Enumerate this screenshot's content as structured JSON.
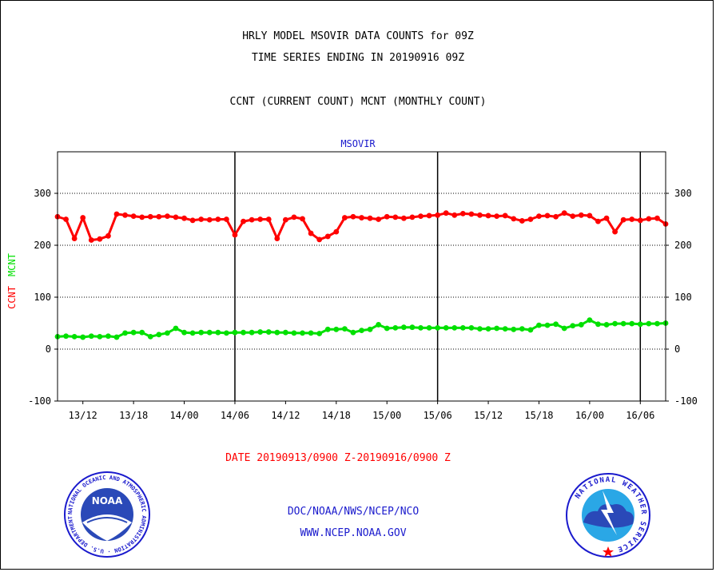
{
  "titles": {
    "line1": "HRLY MODEL MSOVIR DATA COUNTS for 09Z",
    "line2": "TIME SERIES ENDING IN 20190916 09Z",
    "line3": "CCNT (CURRENT COUNT) MCNT (MONTHLY COUNT)"
  },
  "footer": {
    "date_range": "DATE 20190913/0900 Z-20190916/0900 Z",
    "agency": "DOC/NOAA/NWS/NCEP/NCO",
    "url": "WWW.NCEP.NOAA.GOV"
  },
  "logos": {
    "noaa_text": "NOAA",
    "noaa_ring": "NATIONAL OCEANIC AND ATMOSPHERIC ADMINISTRATION · U.S. DEPARTMENT OF COMMERCE ·",
    "nws_ring": "NATIONAL WEATHER SERVICE"
  },
  "colors": {
    "ccnt": "#ff0000",
    "mcnt": "#00e000",
    "label_blue": "#1a1acd"
  },
  "chart_data": {
    "type": "line",
    "title": "MSOVIR",
    "ylabel_series": [
      {
        "text": "CCNT",
        "color": "#ff0000"
      },
      {
        "text": "MCNT",
        "color": "#00e000"
      }
    ],
    "ylim": [
      -100,
      380
    ],
    "yticks": [
      -100,
      0,
      100,
      200,
      300
    ],
    "grid_lines_y": [
      0,
      100,
      200,
      300
    ],
    "xlim": [
      0,
      72
    ],
    "x_tick_labels": [
      {
        "label": "13/12",
        "hour": 3
      },
      {
        "label": "13/18",
        "hour": 9
      },
      {
        "label": "14/00",
        "hour": 15
      },
      {
        "label": "14/06",
        "hour": 21
      },
      {
        "label": "14/12",
        "hour": 27
      },
      {
        "label": "14/18",
        "hour": 33
      },
      {
        "label": "15/00",
        "hour": 39
      },
      {
        "label": "15/06",
        "hour": 45
      },
      {
        "label": "15/12",
        "hour": 51
      },
      {
        "label": "15/18",
        "hour": 57
      },
      {
        "label": "16/00",
        "hour": 63
      },
      {
        "label": "16/06",
        "hour": 69
      }
    ],
    "vertical_markers_hours": [
      21,
      45,
      69
    ],
    "series": [
      {
        "name": "CCNT",
        "color": "#ff0000",
        "values": [
          255,
          250,
          213,
          253,
          210,
          212,
          218,
          260,
          258,
          256,
          254,
          255,
          255,
          256,
          254,
          252,
          248,
          250,
          249,
          250,
          250,
          220,
          246,
          249,
          250,
          250,
          213,
          249,
          254,
          251,
          223,
          211,
          217,
          226,
          253,
          255,
          253,
          252,
          250,
          255,
          254,
          252,
          254,
          256,
          257,
          258,
          262,
          258,
          261,
          260,
          258,
          257,
          256,
          257,
          251,
          247,
          250,
          256,
          257,
          255,
          262,
          256,
          258,
          257,
          246,
          252,
          226,
          249,
          250,
          248,
          251,
          252,
          241
        ]
      },
      {
        "name": "MCNT",
        "color": "#00e000",
        "values": [
          24,
          25,
          24,
          23,
          25,
          24,
          25,
          23,
          31,
          32,
          32,
          24,
          28,
          31,
          40,
          32,
          31,
          32,
          32,
          32,
          31,
          32,
          32,
          32,
          33,
          33,
          32,
          32,
          31,
          31,
          31,
          30,
          38,
          38,
          39,
          32,
          36,
          38,
          47,
          40,
          41,
          42,
          42,
          41,
          41,
          41,
          41,
          41,
          41,
          41,
          39,
          39,
          40,
          39,
          38,
          39,
          37,
          46,
          46,
          48,
          40,
          45,
          47,
          56,
          48,
          47,
          49,
          49,
          49,
          48,
          49,
          49,
          50
        ]
      }
    ]
  }
}
